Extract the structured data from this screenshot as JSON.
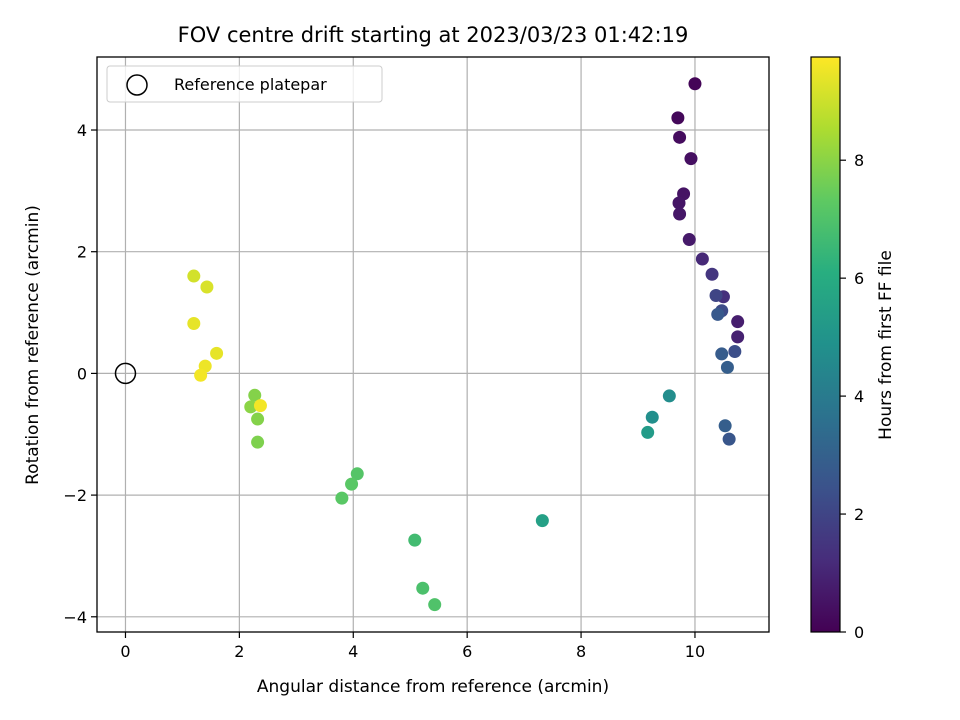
{
  "chart_data": {
    "type": "scatter",
    "title": "FOV centre drift starting at 2023/03/23 01:42:19",
    "xlabel": "Angular distance from reference (arcmin)",
    "ylabel": "Rotation from reference (arcmin)",
    "xlim": [
      -0.5,
      11.3
    ],
    "ylim": [
      -4.25,
      5.2
    ],
    "xticks": [
      0,
      2,
      4,
      6,
      8,
      10
    ],
    "yticks": [
      -4,
      -2,
      0,
      2,
      4
    ],
    "grid": true,
    "legend": {
      "position": "top-left",
      "entries": [
        "Reference platepar"
      ]
    },
    "reference_point": {
      "x": 0,
      "y": 0
    },
    "colorbar": {
      "label": "Hours from first FF file",
      "range": [
        0,
        9.75
      ],
      "ticks": [
        0,
        2,
        4,
        6,
        8
      ],
      "colormap": "viridis"
    },
    "points": [
      {
        "x": 10.0,
        "y": 4.76,
        "c": 0.1
      },
      {
        "x": 9.7,
        "y": 4.2,
        "c": 0.2
      },
      {
        "x": 9.73,
        "y": 3.88,
        "c": 0.3
      },
      {
        "x": 9.93,
        "y": 3.53,
        "c": 0.4
      },
      {
        "x": 9.8,
        "y": 2.95,
        "c": 0.5
      },
      {
        "x": 9.72,
        "y": 2.8,
        "c": 0.55
      },
      {
        "x": 9.73,
        "y": 2.62,
        "c": 0.6
      },
      {
        "x": 9.9,
        "y": 2.2,
        "c": 0.7
      },
      {
        "x": 10.75,
        "y": 0.85,
        "c": 0.8
      },
      {
        "x": 10.75,
        "y": 0.6,
        "c": 0.9
      },
      {
        "x": 10.13,
        "y": 1.88,
        "c": 1.1
      },
      {
        "x": 10.3,
        "y": 1.63,
        "c": 1.5
      },
      {
        "x": 10.5,
        "y": 1.26,
        "c": 1.3
      },
      {
        "x": 10.37,
        "y": 1.28,
        "c": 2.0
      },
      {
        "x": 10.47,
        "y": 1.03,
        "c": 2.2
      },
      {
        "x": 10.4,
        "y": 0.97,
        "c": 2.7
      },
      {
        "x": 10.7,
        "y": 0.36,
        "c": 2.3
      },
      {
        "x": 10.47,
        "y": 0.32,
        "c": 2.8
      },
      {
        "x": 10.57,
        "y": 0.1,
        "c": 2.9
      },
      {
        "x": 10.53,
        "y": -0.86,
        "c": 2.9
      },
      {
        "x": 10.6,
        "y": -1.08,
        "c": 2.6
      },
      {
        "x": 9.55,
        "y": -0.37,
        "c": 4.7
      },
      {
        "x": 9.25,
        "y": -0.72,
        "c": 4.8
      },
      {
        "x": 9.17,
        "y": -0.97,
        "c": 5.3
      },
      {
        "x": 7.32,
        "y": -2.42,
        "c": 5.5
      },
      {
        "x": 4.07,
        "y": -1.65,
        "c": 7.1
      },
      {
        "x": 3.97,
        "y": -1.82,
        "c": 7.2
      },
      {
        "x": 3.8,
        "y": -2.05,
        "c": 7.2
      },
      {
        "x": 5.08,
        "y": -2.74,
        "c": 6.7
      },
      {
        "x": 5.22,
        "y": -3.53,
        "c": 6.9
      },
      {
        "x": 5.43,
        "y": -3.8,
        "c": 7.0
      },
      {
        "x": 2.27,
        "y": -0.36,
        "c": 7.9
      },
      {
        "x": 2.2,
        "y": -0.55,
        "c": 8.0
      },
      {
        "x": 2.32,
        "y": -0.75,
        "c": 7.9
      },
      {
        "x": 2.32,
        "y": -1.13,
        "c": 7.8
      },
      {
        "x": 2.37,
        "y": -0.53,
        "c": 9.6
      },
      {
        "x": 1.2,
        "y": 1.6,
        "c": 9.1
      },
      {
        "x": 1.43,
        "y": 1.42,
        "c": 9.2
      },
      {
        "x": 1.2,
        "y": 0.82,
        "c": 9.4
      },
      {
        "x": 1.6,
        "y": 0.33,
        "c": 9.4
      },
      {
        "x": 1.4,
        "y": 0.12,
        "c": 9.5
      },
      {
        "x": 1.32,
        "y": -0.03,
        "c": 9.6
      }
    ]
  }
}
